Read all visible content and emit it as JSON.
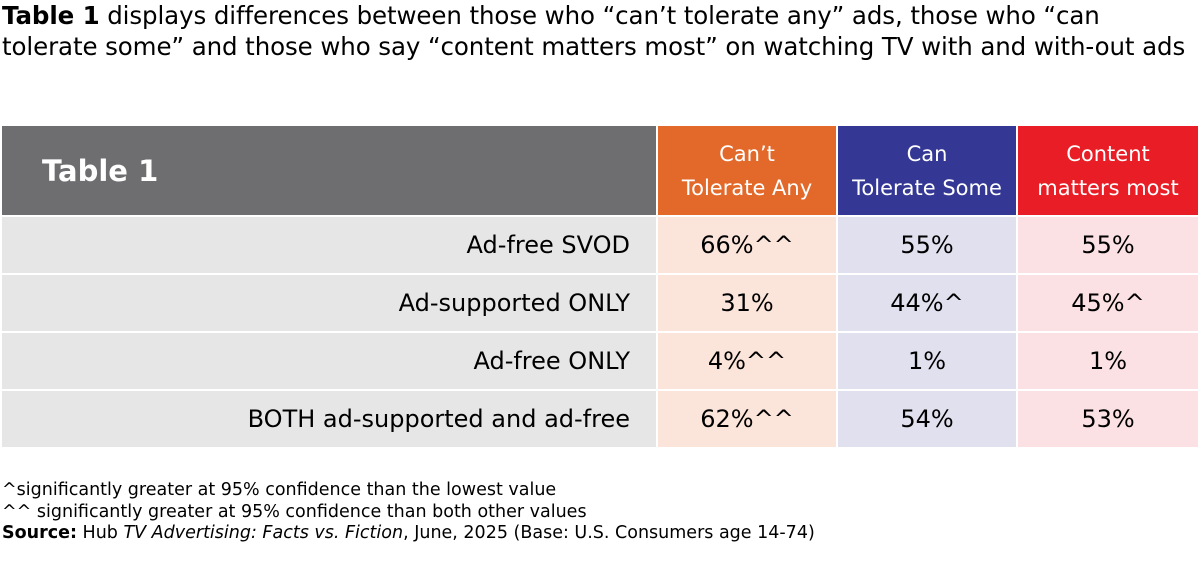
{
  "intro": {
    "bold_lead": "Table 1",
    "text": " displays differences between those who “can’t tolerate any” ads, those who “can tolerate some” and those who say “content matters most” on watching TV with and with-out ads"
  },
  "table": {
    "title": "Table 1",
    "columns": [
      {
        "label": "Can’t\nTolerate Any",
        "color": "#e3692a",
        "cell_color": "#fbe4da"
      },
      {
        "label": "Can\nTolerate Some",
        "color": "#343894",
        "cell_color": "#e1e0ef"
      },
      {
        "label": "Content\nmatters most",
        "color": "#e91d25",
        "cell_color": "#fbe1e3"
      }
    ],
    "rows": [
      {
        "label": "Ad-free SVOD",
        "values": [
          "66%^^",
          "55%",
          "55%"
        ]
      },
      {
        "label": "Ad-supported ONLY",
        "values": [
          "31%",
          "44%^",
          "45%^"
        ]
      },
      {
        "label": "Ad-free ONLY",
        "values": [
          "4%^^",
          "1%",
          "1%"
        ]
      },
      {
        "label": "BOTH ad-supported and ad-free",
        "values": [
          "62%^^",
          "54%",
          "53%"
        ]
      }
    ]
  },
  "notes": {
    "note1": "^significantly greater at 95% confidence than the lowest value",
    "note2": "^^ significantly greater at 95% confidence than both other values",
    "source_label": "Source:",
    "source_pre": " Hub ",
    "source_title": "TV Advertising: Facts vs. Fiction",
    "source_post": ", June, 2025 (Base: U.S. Consumers age 14-74)"
  }
}
